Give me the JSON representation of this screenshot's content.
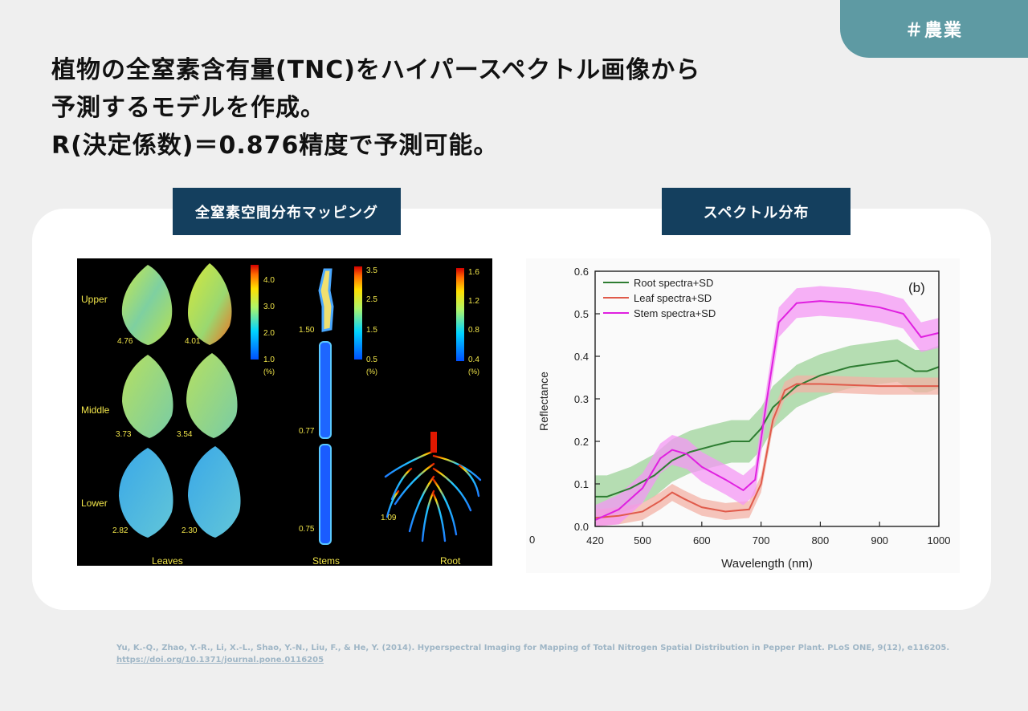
{
  "tag": "＃農業",
  "headline": [
    "植物の全窒素含有量(TNC)をハイパースペクトル画像から",
    "予測するモデルを作成。",
    "R(決定係数)＝0.876精度で予測可能。"
  ],
  "labels": {
    "left": "全窒素空間分布マッピング",
    "right": "スペクトル分布"
  },
  "mapping_figure": {
    "row_labels": [
      "Upper",
      "Middle",
      "Lower"
    ],
    "leaf_values": [
      "4.76",
      "4.01",
      "3.73",
      "3.54",
      "2.82",
      "2.30"
    ],
    "stem_values": [
      "1.50",
      "0.77",
      "0.75"
    ],
    "root_value": "1.09",
    "scale_leaves": [
      "4.0",
      "3.0",
      "2.0",
      "1.0"
    ],
    "scale_stems": [
      "3.5",
      "2.5",
      "1.5",
      "0.5"
    ],
    "scale_root": [
      "1.6",
      "1.2",
      "0.8",
      "0.4"
    ],
    "unit": "(%)",
    "bottom_labels": [
      "Leaves",
      "Stems",
      "Root"
    ]
  },
  "chart_data": {
    "type": "line",
    "panel_label": "(b)",
    "xlabel": "Wavelength (nm)",
    "ylabel": "Reflectance",
    "x_ticks": [
      "420",
      "500",
      "600",
      "700",
      "800",
      "900",
      "1000"
    ],
    "origin_label": "0",
    "y_ticks": [
      "0.0",
      "0.1",
      "0.2",
      "0.3",
      "0.4",
      "0.5",
      "0.6"
    ],
    "xlim": [
      420,
      1000
    ],
    "ylim": [
      0,
      0.6
    ],
    "legend_position": "top-left",
    "series": [
      {
        "name": "Root spectra+SD",
        "color": "#2e7d32",
        "band": "#9ed39a",
        "x": [
          420,
          440,
          480,
          520,
          550,
          580,
          620,
          650,
          680,
          700,
          720,
          760,
          800,
          850,
          900,
          930,
          960,
          980,
          1000
        ],
        "y": [
          0.07,
          0.07,
          0.09,
          0.12,
          0.155,
          0.175,
          0.19,
          0.2,
          0.2,
          0.23,
          0.28,
          0.33,
          0.355,
          0.375,
          0.385,
          0.39,
          0.365,
          0.365,
          0.375
        ],
        "sd": 0.05
      },
      {
        "name": "Leaf spectra+SD",
        "color": "#e05a4a",
        "band": "#f3b1a6",
        "x": [
          420,
          460,
          500,
          530,
          550,
          570,
          600,
          640,
          680,
          700,
          720,
          740,
          760,
          800,
          900,
          1000
        ],
        "y": [
          0.02,
          0.025,
          0.035,
          0.06,
          0.08,
          0.065,
          0.045,
          0.035,
          0.04,
          0.1,
          0.25,
          0.32,
          0.335,
          0.335,
          0.33,
          0.33
        ],
        "sd": 0.02
      },
      {
        "name": "Stem spectra+SD",
        "color": "#e020e0",
        "band": "#f497f4",
        "x": [
          420,
          460,
          500,
          530,
          550,
          575,
          600,
          640,
          670,
          690,
          710,
          730,
          760,
          800,
          850,
          900,
          940,
          970,
          1000
        ],
        "y": [
          0.015,
          0.04,
          0.09,
          0.16,
          0.18,
          0.17,
          0.14,
          0.11,
          0.085,
          0.11,
          0.3,
          0.48,
          0.525,
          0.53,
          0.525,
          0.515,
          0.5,
          0.445,
          0.455
        ],
        "sd": 0.035
      }
    ]
  },
  "citation": {
    "text": "Yu, K.-Q., Zhao, Y.-R., Li, X.-L., Shao, Y.-N., Liu, F., & He, Y. (2014). Hyperspectral Imaging for Mapping of Total Nitrogen Spatial Distribution in Pepper Plant. PLoS ONE, 9(12), e116205.",
    "link": "https://doi.org/10.1371/journal.pone.0116205"
  }
}
